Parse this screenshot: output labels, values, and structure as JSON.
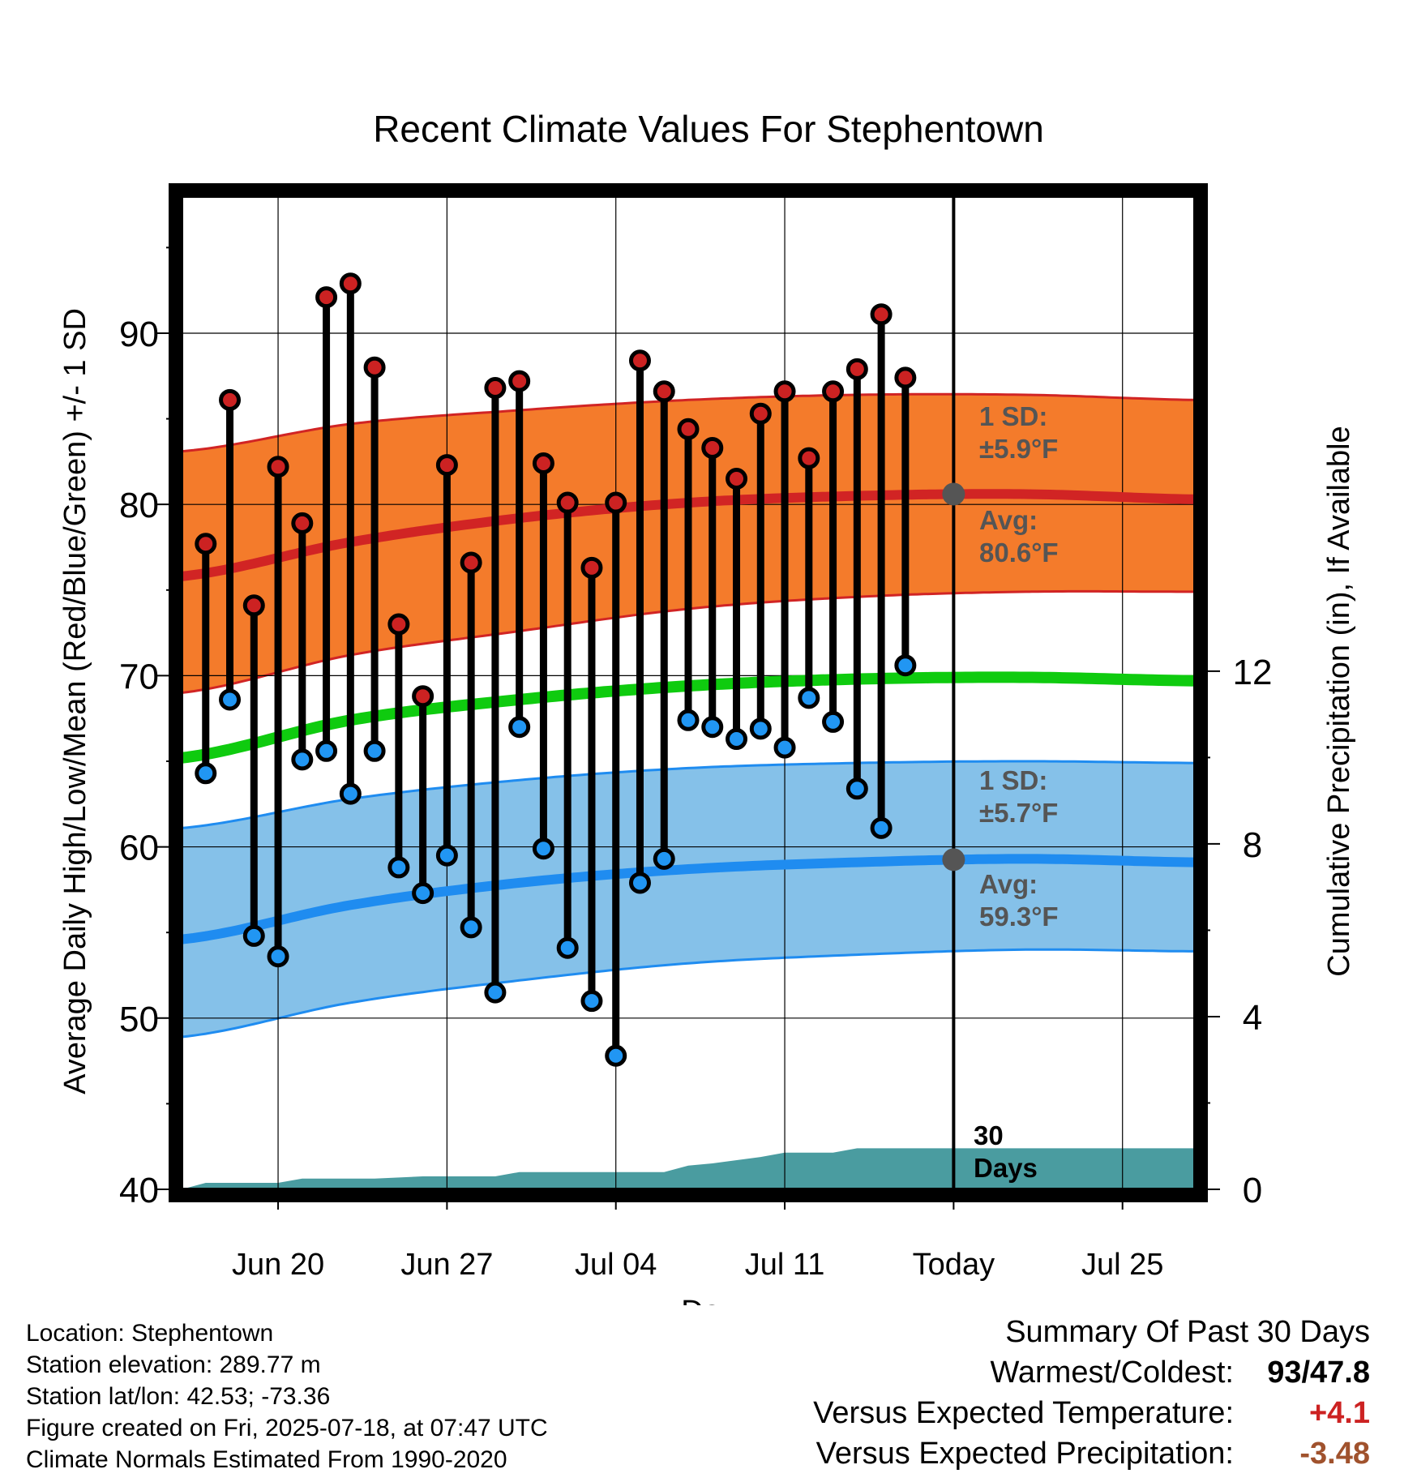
{
  "chart_data": {
    "type": "line",
    "title": "Recent Climate Values For Stephentown",
    "xlabel": "Day",
    "ylabel_left": "Average Daily High/Low/Mean (Red/Blue/Green) +/- 1 SD",
    "ylabel_right": "Cumulative Precipitation (in), If Available",
    "x_domain": [
      "2025-06-16",
      "2025-07-28"
    ],
    "ylim_left": [
      40,
      98
    ],
    "ylim_right": [
      0,
      23
    ],
    "y_ticks_left": [
      40,
      50,
      60,
      70,
      80,
      90
    ],
    "y_ticks_right": [
      0,
      4,
      8,
      12
    ],
    "x_ticks": [
      {
        "date": "2025-06-20",
        "label": "Jun 20"
      },
      {
        "date": "2025-06-27",
        "label": "Jun 27"
      },
      {
        "date": "2025-07-04",
        "label": "Jul 04"
      },
      {
        "date": "2025-07-11",
        "label": "Jul 11"
      },
      {
        "date": "2025-07-18",
        "label": "Today"
      },
      {
        "date": "2025-07-25",
        "label": "Jul 25"
      }
    ],
    "grid": true,
    "today_date": "2025-07-18",
    "today_label": "30 Days",
    "daily_obs": {
      "dates": [
        "2025-06-17",
        "2025-06-18",
        "2025-06-19",
        "2025-06-20",
        "2025-06-21",
        "2025-06-22",
        "2025-06-23",
        "2025-06-24",
        "2025-06-25",
        "2025-06-26",
        "2025-06-27",
        "2025-06-28",
        "2025-06-29",
        "2025-06-30",
        "2025-07-01",
        "2025-07-02",
        "2025-07-03",
        "2025-07-04",
        "2025-07-05",
        "2025-07-06",
        "2025-07-07",
        "2025-07-08",
        "2025-07-09",
        "2025-07-10",
        "2025-07-11",
        "2025-07-12",
        "2025-07-13",
        "2025-07-14",
        "2025-07-15",
        "2025-07-16",
        "2025-07-17"
      ],
      "highs": [
        77.7,
        86.1,
        74.1,
        82.2,
        78.9,
        92.1,
        92.9,
        88.0,
        73.0,
        68.8,
        82.3,
        76.6,
        86.8,
        87.2,
        82.4,
        80.1,
        76.3,
        80.1,
        88.4,
        86.6,
        84.4,
        83.3,
        81.5,
        85.3,
        86.6,
        82.7,
        86.6,
        87.9,
        91.1,
        87.4,
        null
      ],
      "lows": [
        64.3,
        68.6,
        54.8,
        53.6,
        65.1,
        65.6,
        63.1,
        65.6,
        58.8,
        57.3,
        59.5,
        55.3,
        51.5,
        67.0,
        59.9,
        54.1,
        51.0,
        47.8,
        57.9,
        59.3,
        67.4,
        67.0,
        66.3,
        66.9,
        65.8,
        68.7,
        67.3,
        63.4,
        61.1,
        70.6,
        null
      ]
    },
    "normals": {
      "dates": [
        "2025-06-16",
        "2025-06-23",
        "2025-06-30",
        "2025-07-07",
        "2025-07-14",
        "2025-07-21",
        "2025-07-28"
      ],
      "avg_high": [
        75.8,
        77.8,
        79.2,
        80.1,
        80.5,
        80.6,
        80.3
      ],
      "high_sd_upper": [
        83.1,
        84.7,
        85.5,
        86.1,
        86.4,
        86.4,
        86.1
      ],
      "high_sd_lower": [
        69.0,
        71.2,
        72.6,
        73.9,
        74.6,
        74.9,
        74.9
      ],
      "avg_mean": [
        65.2,
        67.4,
        68.6,
        69.4,
        69.8,
        69.9,
        69.7
      ],
      "avg_low": [
        54.6,
        56.6,
        57.9,
        58.7,
        59.1,
        59.3,
        59.1
      ],
      "low_sd_upper": [
        61.1,
        62.8,
        63.9,
        64.6,
        64.9,
        65.0,
        64.9
      ],
      "low_sd_lower": [
        48.9,
        50.9,
        52.2,
        53.2,
        53.7,
        54.0,
        53.9
      ]
    },
    "precip_cumulative": {
      "dates": [
        "2025-06-16",
        "2025-06-17",
        "2025-06-20",
        "2025-06-21",
        "2025-06-24",
        "2025-06-26",
        "2025-06-29",
        "2025-06-30",
        "2025-07-03",
        "2025-07-06",
        "2025-07-07",
        "2025-07-08",
        "2025-07-10",
        "2025-07-11",
        "2025-07-13",
        "2025-07-14",
        "2025-07-15",
        "2025-07-28"
      ],
      "values": [
        0.0,
        0.15,
        0.15,
        0.25,
        0.25,
        0.3,
        0.3,
        0.4,
        0.4,
        0.4,
        0.55,
        0.6,
        0.75,
        0.85,
        0.85,
        0.95,
        0.95,
        0.95
      ]
    },
    "annotations": {
      "high_sd_label": "1 SD:",
      "high_sd_value": "±5.9°F",
      "high_avg_label": "Avg:",
      "high_avg_value": "80.6°F",
      "low_sd_label": "1 SD:",
      "low_sd_value": "±5.7°F",
      "low_avg_label": "Avg:",
      "low_avg_value": "59.3°F",
      "days_line1": "30",
      "days_line2": "Days"
    },
    "colors": {
      "high_band": "#f47b2b",
      "high_line": "#d12424",
      "low_band": "#85c1e9",
      "low_line": "#1f8cf0",
      "mean_line": "#0fcb0f",
      "precip": "#4a9ca0",
      "high_marker": "#cc2222",
      "low_marker": "#2196f3",
      "today_marker": "#555555"
    }
  },
  "info": {
    "location": "Location: Stephentown",
    "elevation": "Station elevation: 289.77 m",
    "latlon": "Station lat/lon: 42.53; -73.36",
    "created": "Figure created on Fri, 2025-07-18, at 07:47 UTC",
    "normals": "Climate Normals Estimated From 1990-2020"
  },
  "summary": {
    "title": "Summary Of Past 30 Days",
    "warmest_label": "Warmest/Coldest:",
    "warmest_value": "93/47.8",
    "temp_label": "Versus Expected Temperature:",
    "temp_value": "+4.1",
    "temp_color": "#cc2222",
    "precip_label": "Versus Expected Precipitation:",
    "precip_value": "-3.48",
    "precip_color": "#a0522d"
  }
}
